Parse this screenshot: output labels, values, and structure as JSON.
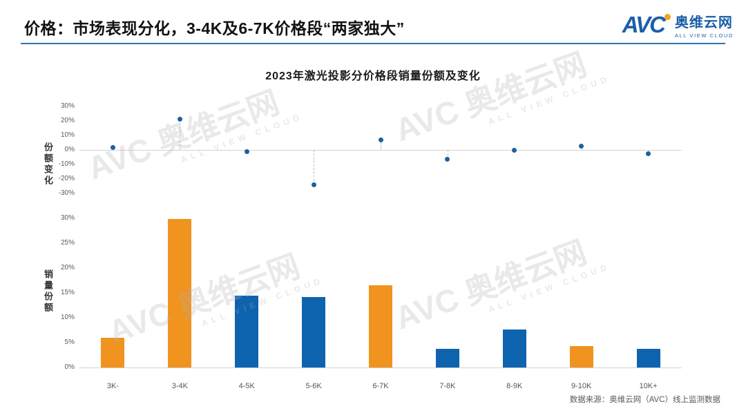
{
  "header": {
    "title": "价格：市场表现分化，3-4K及6-7K价格段“两家独大”",
    "logo": {
      "text": "AVC",
      "cn": "奥维云网",
      "en": "ALL VIEW CLOUD"
    }
  },
  "chart": {
    "title": "2023年激光投影分价格段销量份额及变化",
    "scatter_axis_label": "份额变化",
    "bar_axis_label": "销量份额",
    "scatter_ticks": [
      "30%",
      "20%",
      "10%",
      "0%",
      "-10%",
      "-20%",
      "-30%"
    ],
    "bar_ticks": [
      "30%",
      "25%",
      "20%",
      "15%",
      "10%",
      "5%",
      "0%"
    ]
  },
  "watermark": {
    "line1": "AVC 奥维云网",
    "line2": "ALL VIEW CLOUD"
  },
  "footer": {
    "source": "数据来源：奥维云网（AVC）线上监测数据"
  },
  "colors": {
    "bar_orange": "#F0931F",
    "bar_blue": "#0E63AF",
    "dot_blue": "#1F5F9E",
    "accent_blue": "#2E74B5",
    "logo_blue": "#1B5FA8",
    "logo_orange": "#F6A21C"
  },
  "chart_data": [
    {
      "type": "scatter",
      "name": "份额变化",
      "categories": [
        "3K-",
        "3-4K",
        "4-5K",
        "5-6K",
        "6-7K",
        "7-8K",
        "8-9K",
        "9-10K",
        "10K+"
      ],
      "values": [
        1.5,
        21,
        -1,
        -24,
        7,
        -6.5,
        0,
        2.5,
        -2.5
      ],
      "unit": "%",
      "ylim": [
        -30,
        30
      ],
      "ytick_step": 10,
      "grid": "zero-line-only",
      "point_color": "#1F5F9E",
      "connector": "dashed-to-zero"
    },
    {
      "type": "bar",
      "name": "销量份额",
      "categories": [
        "3K-",
        "3-4K",
        "4-5K",
        "5-6K",
        "6-7K",
        "7-8K",
        "8-9K",
        "9-10K",
        "10K+"
      ],
      "values": [
        6.0,
        29.8,
        14.5,
        14.2,
        16.5,
        3.7,
        7.7,
        4.3,
        3.8
      ],
      "bar_colors": [
        "orange",
        "orange",
        "blue",
        "blue",
        "orange",
        "blue",
        "blue",
        "orange",
        "blue"
      ],
      "unit": "%",
      "ylim": [
        0,
        30
      ],
      "ytick_step": 5
    }
  ]
}
